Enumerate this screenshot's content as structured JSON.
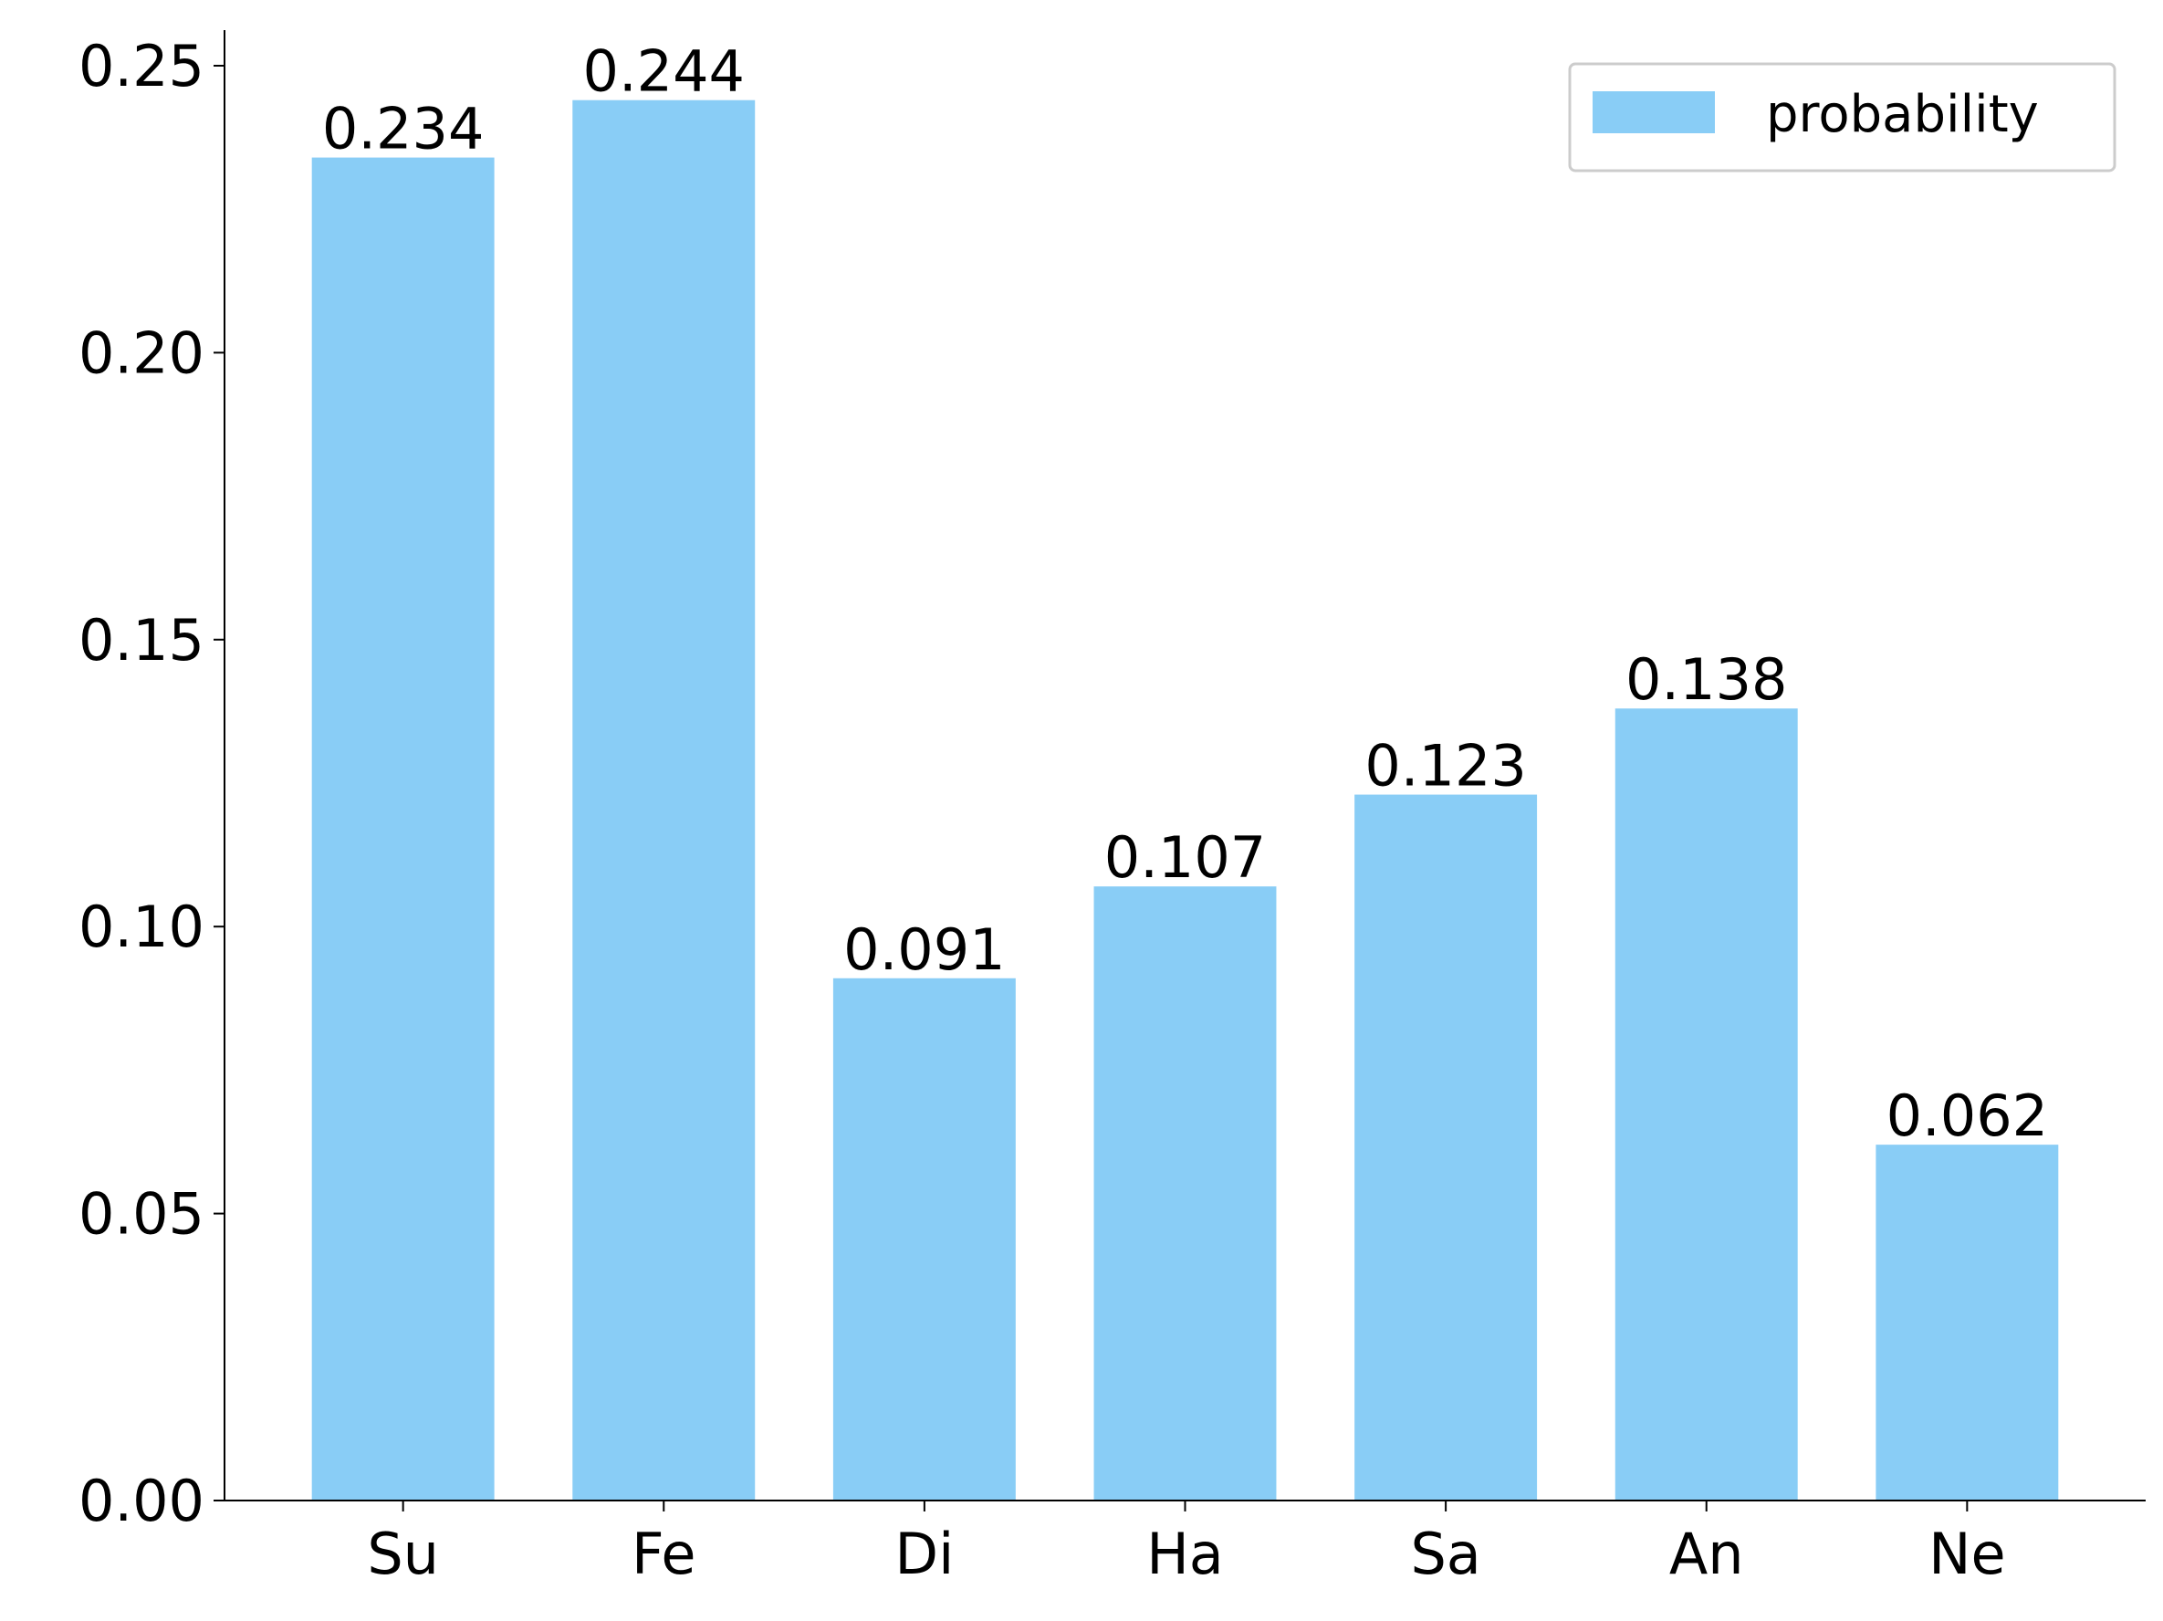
{
  "chart_data": {
    "type": "bar",
    "categories": [
      "Su",
      "Fe",
      "Di",
      "Ha",
      "Sa",
      "An",
      "Ne"
    ],
    "series": [
      {
        "name": "probability",
        "color": "#89cdf6",
        "values": [
          0.234,
          0.244,
          0.091,
          0.107,
          0.123,
          0.138,
          0.062
        ]
      }
    ],
    "ylim": [
      0,
      0.2562
    ],
    "yticks": [
      {
        "value": 0,
        "label": "0.00"
      },
      {
        "value": 0.05,
        "label": "0.05"
      },
      {
        "value": 0.1,
        "label": "0.10"
      },
      {
        "value": 0.15,
        "label": "0.15"
      },
      {
        "value": 0.2,
        "label": "0.20"
      },
      {
        "value": 0.25,
        "label": "0.25"
      }
    ],
    "legend": "upper right"
  }
}
